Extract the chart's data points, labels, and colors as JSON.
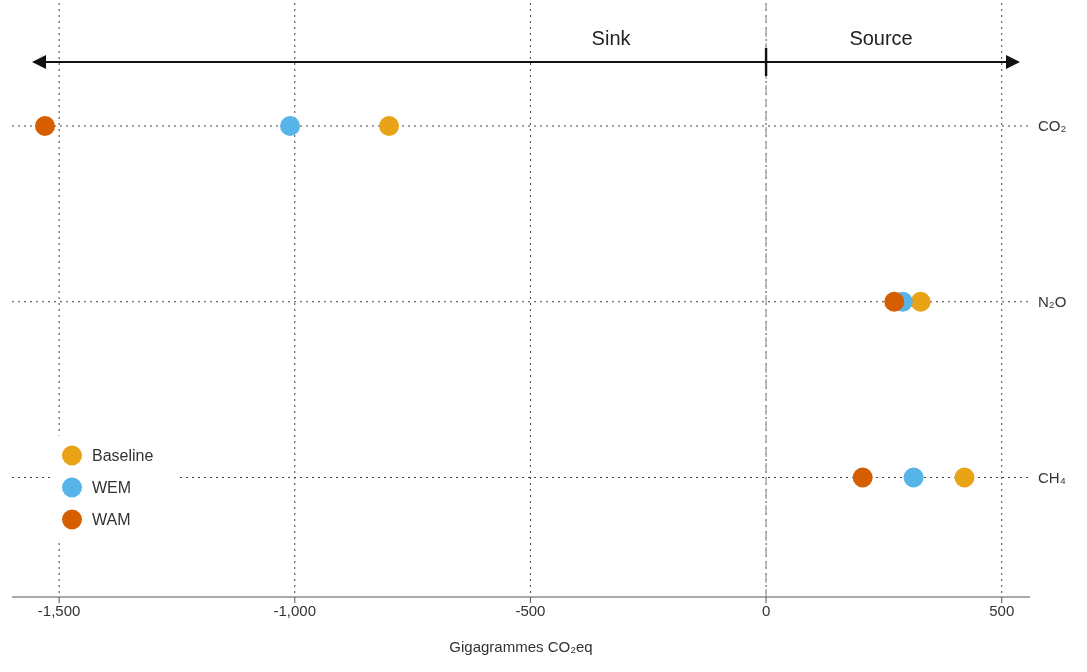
{
  "chart_data": {
    "type": "scatter",
    "xlabel": "Gigagrammes CO₂eq",
    "categories": [
      "CO₂",
      "N₂O",
      "CH₄"
    ],
    "series": [
      {
        "name": "Baseline",
        "color": "#e8a317",
        "values": [
          -800,
          328,
          421
        ]
      },
      {
        "name": "WEM",
        "color": "#56b4e9",
        "values": [
          -1010,
          290,
          313
        ]
      },
      {
        "name": "WAM",
        "color": "#d55e00",
        "values": [
          -1530,
          272,
          205
        ]
      }
    ],
    "orientation": "horizontal",
    "xlim": [
      -1600,
      560
    ],
    "xticks": [
      {
        "value": -1500,
        "label": "-1,500"
      },
      {
        "value": -1000,
        "label": "-1,000"
      },
      {
        "value": -500,
        "label": "-500"
      },
      {
        "value": 0,
        "label": "0"
      },
      {
        "value": 500,
        "label": "500"
      }
    ],
    "ref_lines": [
      {
        "axis": "x",
        "value": 0,
        "color": "#aaaaaa",
        "line_style": "dashed"
      }
    ],
    "annotations": [
      "Sink",
      "Source"
    ],
    "grid": true,
    "legend": "bottom left",
    "marker": "circle"
  }
}
